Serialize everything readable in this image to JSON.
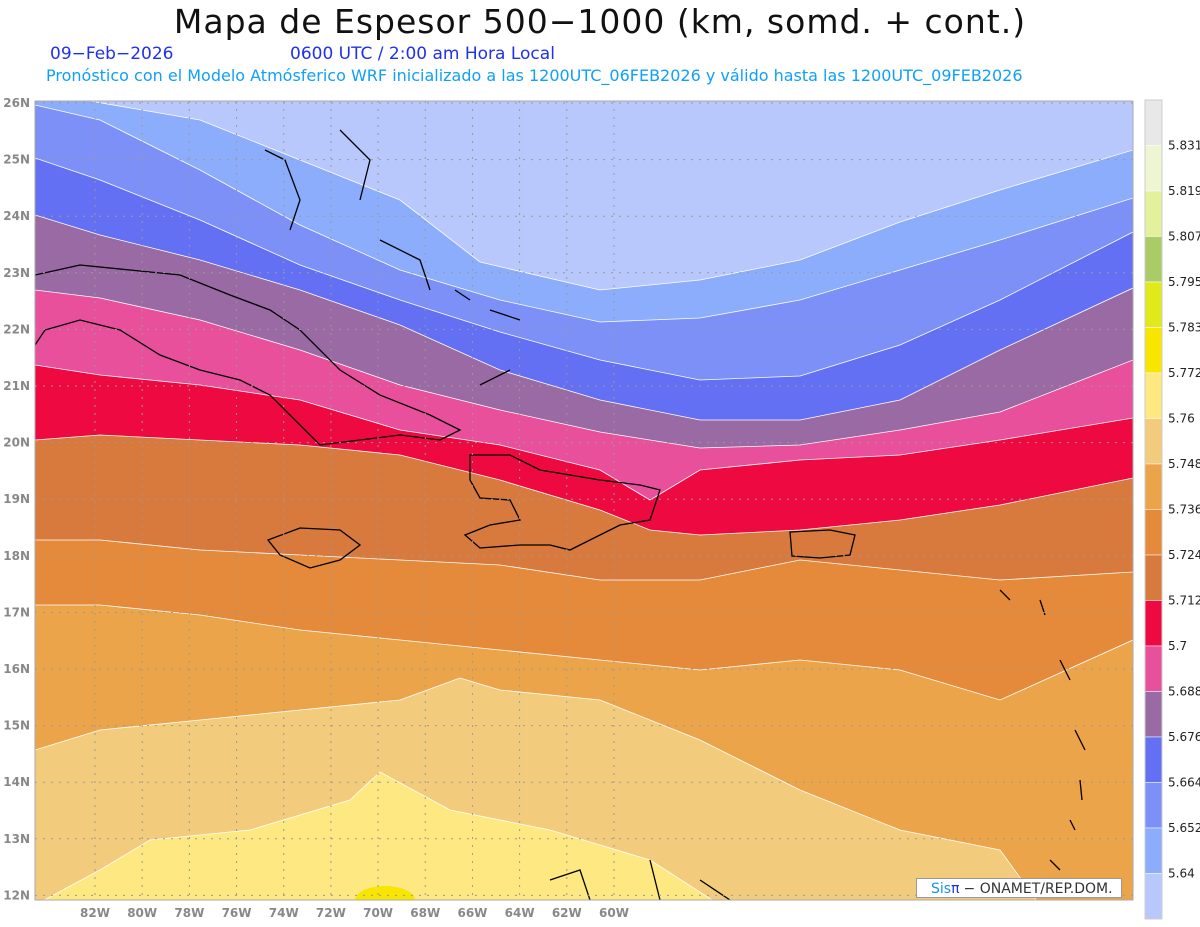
{
  "header": {
    "title": "Mapa de Espesor 500−1000 (km, somd. + cont.)",
    "date": "09−Feb−2026",
    "time": "0600 UTC / 2:00 am Hora Local",
    "subtitle": "Pronóstico con el Modelo Atmósferico WRF inicializado a las 1200UTC_06FEB2026 y válido hasta las  1200UTC_09FEB2026"
  },
  "axes": {
    "lat_labels": [
      "26N",
      "25N",
      "24N",
      "23N",
      "22N",
      "21N",
      "20N",
      "19N",
      "18N",
      "17N",
      "16N",
      "15N",
      "14N",
      "13N",
      "12N"
    ],
    "lon_labels": [
      "82W",
      "80W",
      "78W",
      "76W",
      "74W",
      "72W",
      "70W",
      "68W",
      "66W",
      "64W",
      "62W",
      "60W"
    ]
  },
  "legend": {
    "labels": [
      "5.831",
      "5.819",
      "5.807",
      "5.795",
      "5.783",
      "5.772",
      "5.76",
      "5.748",
      "5.736",
      "5.724",
      "5.712",
      "5.7",
      "5.688",
      "5.676",
      "5.664",
      "5.652",
      "5.64"
    ],
    "colors": [
      "#e8e8e8",
      "#eef5d2",
      "#e3f19c",
      "#a9cc66",
      "#e2e91a",
      "#f9e600",
      "#fde882",
      "#f2cc7c",
      "#eca44a",
      "#e48a3a",
      "#d87a3e",
      "#ee0a40",
      "#e8509c",
      "#9a6aa4",
      "#6470f4",
      "#7c90f8",
      "#8cacfc",
      "#b8c8fc"
    ]
  },
  "credit": {
    "sis": "Sis",
    "pi": "π",
    "text": "− ONAMET/REP.DOM."
  }
}
